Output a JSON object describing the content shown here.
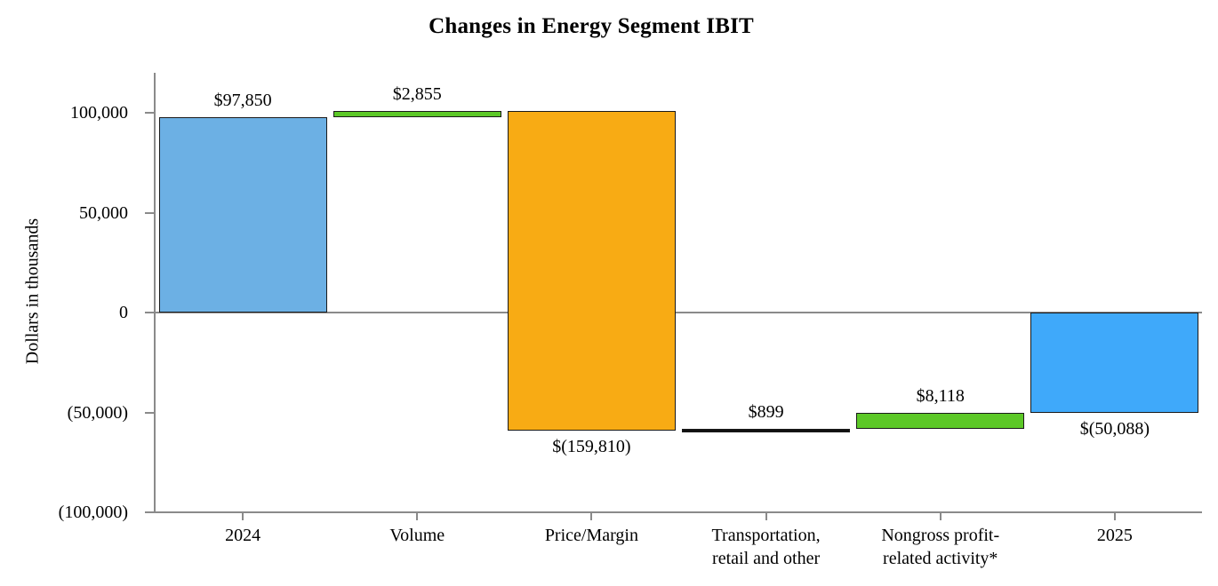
{
  "chart": {
    "title": "Changes in Energy Segment IBIT",
    "y_axis_title": "Dollars in thousands"
  },
  "chart_data": {
    "type": "bar",
    "subtype": "waterfall",
    "title": "Changes in Energy Segment IBIT",
    "xlabel": "",
    "ylabel": "Dollars in thousands",
    "ylim": [
      -100000,
      120000
    ],
    "grid": "zero-line-only",
    "legend": "none",
    "y_ticks": [
      {
        "value": 100000,
        "label": "100,000"
      },
      {
        "value": 50000,
        "label": "50,000"
      },
      {
        "value": 0,
        "label": "0"
      },
      {
        "value": -50000,
        "label": "(50,000)"
      },
      {
        "value": -100000,
        "label": "(100,000)"
      }
    ],
    "categories": [
      "2024",
      "Volume",
      "Price/Margin",
      "Transportation,\nretail and other",
      "Nongross profit-\nrelated activity*",
      "2025"
    ],
    "values": [
      97850,
      2855,
      -159810,
      899,
      8118,
      -50088
    ],
    "bar_segments": [
      {
        "category": "2024",
        "from": 0,
        "to": 97850,
        "label": "$97,850",
        "label_position": "above",
        "color": "#6CB0E4"
      },
      {
        "category": "Volume",
        "from": 97850,
        "to": 100705,
        "label": "$2,855",
        "label_position": "above",
        "color": "#5CC827"
      },
      {
        "category": "Price/Margin",
        "from": 100705,
        "to": -59105,
        "label": "$(159,810)",
        "label_position": "below",
        "color": "#F8AB14"
      },
      {
        "category": "Transportation,\nretail and other",
        "from": -59105,
        "to": -58206,
        "label": "$899",
        "label_position": "above",
        "color": "#111111"
      },
      {
        "category": "Nongross profit-\nrelated activity*",
        "from": -58206,
        "to": -50088,
        "label": "$8,118",
        "label_position": "above",
        "color": "#5CC827"
      },
      {
        "category": "2025",
        "from": -50088,
        "to": 0,
        "label": "$(50,088)",
        "label_position": "below",
        "color": "#3FA9FA"
      }
    ],
    "colors": {
      "start_end_bar_2024": "#6CB0E4",
      "start_end_bar_2025": "#3FA9FA",
      "increase": "#5CC827",
      "decrease_large": "#F8AB14",
      "decrease_small": "#111111",
      "axis": "#8a8a8a",
      "bar_border": "#1a1a1a"
    }
  }
}
